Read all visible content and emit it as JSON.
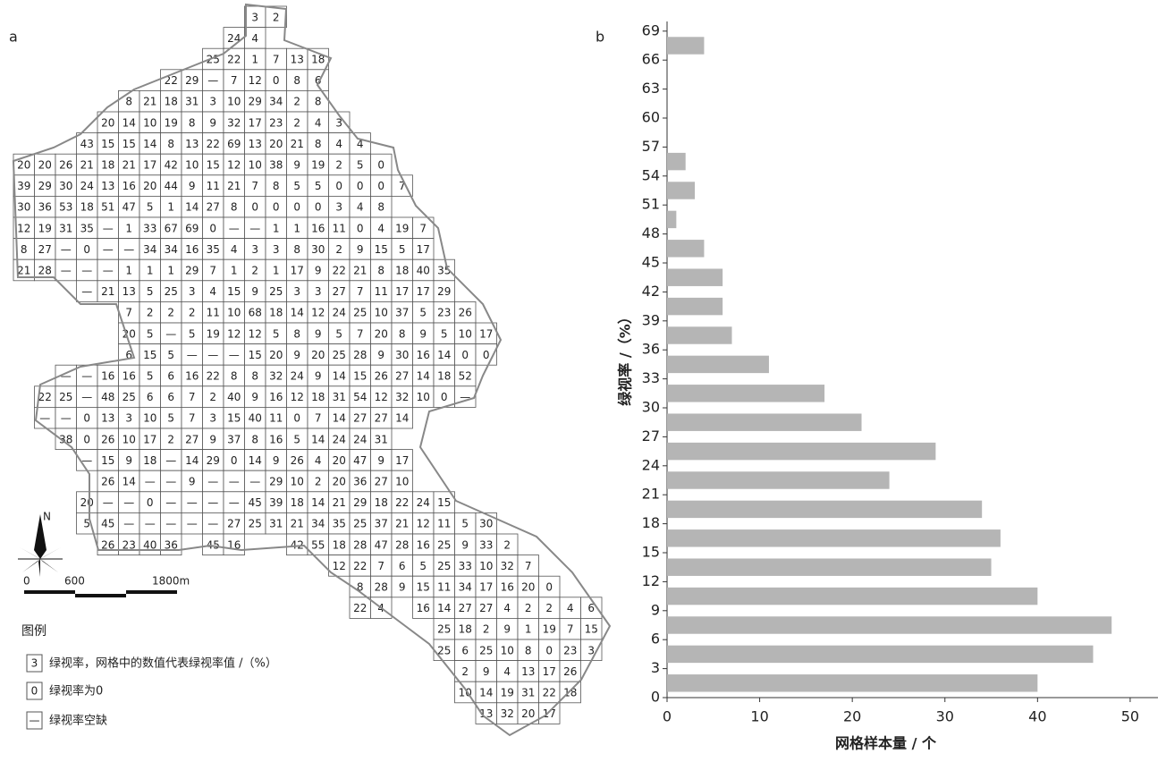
{
  "panel_a": {
    "label": "a",
    "grid": {
      "rows": [
        [
          null,
          null,
          null,
          null,
          null,
          null,
          null,
          null,
          null,
          null,
          null,
          3,
          2
        ],
        [
          null,
          null,
          null,
          null,
          null,
          null,
          null,
          null,
          null,
          null,
          24,
          4
        ],
        [
          null,
          null,
          null,
          null,
          null,
          null,
          null,
          null,
          null,
          25,
          22,
          1,
          7,
          13,
          18
        ],
        [
          null,
          null,
          null,
          null,
          null,
          null,
          null,
          22,
          29,
          "—",
          7,
          12,
          0,
          8,
          6
        ],
        [
          null,
          null,
          null,
          null,
          null,
          8,
          21,
          18,
          31,
          3,
          10,
          29,
          34,
          2,
          8
        ],
        [
          null,
          null,
          null,
          null,
          20,
          14,
          10,
          19,
          8,
          9,
          32,
          17,
          23,
          2,
          4,
          3
        ],
        [
          null,
          null,
          null,
          43,
          15,
          15,
          14,
          8,
          13,
          22,
          69,
          13,
          20,
          21,
          8,
          4,
          4
        ],
        [
          20,
          20,
          26,
          21,
          18,
          21,
          17,
          42,
          10,
          15,
          12,
          10,
          38,
          9,
          19,
          2,
          5,
          0
        ],
        [
          39,
          29,
          30,
          24,
          13,
          16,
          20,
          44,
          9,
          11,
          21,
          7,
          8,
          5,
          5,
          0,
          0,
          0,
          7
        ],
        [
          30,
          36,
          53,
          18,
          51,
          47,
          5,
          1,
          14,
          27,
          8,
          0,
          0,
          0,
          0,
          3,
          4,
          8
        ],
        [
          12,
          19,
          31,
          35,
          "—",
          1,
          33,
          67,
          69,
          0,
          "—",
          "—",
          1,
          1,
          16,
          11,
          0,
          4,
          19,
          7
        ],
        [
          8,
          27,
          "—",
          0,
          "—",
          "—",
          34,
          34,
          16,
          35,
          4,
          3,
          3,
          8,
          30,
          2,
          9,
          15,
          5,
          17
        ],
        [
          21,
          28,
          "—",
          "—",
          "—",
          1,
          1,
          1,
          29,
          7,
          1,
          2,
          1,
          17,
          9,
          22,
          21,
          8,
          18,
          40,
          35
        ],
        [
          null,
          null,
          null,
          "—",
          21,
          13,
          5,
          25,
          3,
          4,
          15,
          9,
          25,
          3,
          3,
          27,
          7,
          11,
          17,
          17,
          29
        ],
        [
          null,
          null,
          null,
          null,
          null,
          7,
          2,
          2,
          2,
          11,
          10,
          68,
          18,
          14,
          12,
          24,
          25,
          10,
          37,
          5,
          23,
          26
        ],
        [
          null,
          null,
          null,
          null,
          null,
          20,
          5,
          "—",
          5,
          19,
          12,
          12,
          5,
          8,
          9,
          5,
          7,
          20,
          8,
          9,
          5,
          10,
          17
        ],
        [
          null,
          null,
          null,
          null,
          null,
          6,
          15,
          5,
          "—",
          "—",
          "—",
          15,
          20,
          9,
          20,
          25,
          28,
          9,
          30,
          16,
          14,
          0,
          0
        ],
        [
          null,
          null,
          "—",
          "—",
          16,
          16,
          5,
          6,
          16,
          22,
          8,
          8,
          32,
          24,
          9,
          14,
          15,
          26,
          27,
          14,
          18,
          52
        ],
        [
          null,
          22,
          25,
          "—",
          48,
          25,
          6,
          6,
          7,
          2,
          40,
          9,
          16,
          12,
          18,
          31,
          54,
          12,
          32,
          10,
          0,
          "—"
        ],
        [
          null,
          "—",
          "—",
          0,
          13,
          3,
          10,
          5,
          7,
          3,
          15,
          40,
          11,
          0,
          7,
          14,
          27,
          27,
          14
        ],
        [
          null,
          null,
          38,
          0,
          26,
          10,
          17,
          2,
          27,
          9,
          37,
          8,
          16,
          5,
          14,
          24,
          24,
          31
        ],
        [
          null,
          null,
          null,
          "—",
          15,
          9,
          18,
          "—",
          14,
          29,
          0,
          14,
          9,
          26,
          4,
          20,
          47,
          9,
          17
        ],
        [
          null,
          null,
          null,
          null,
          26,
          14,
          "—",
          "—",
          9,
          "—",
          "—",
          "—",
          29,
          10,
          2,
          20,
          36,
          27,
          10
        ],
        [
          null,
          null,
          null,
          20,
          "—",
          "—",
          0,
          "—",
          "—",
          "—",
          "—",
          45,
          39,
          18,
          14,
          21,
          29,
          18,
          22,
          24,
          15
        ],
        [
          null,
          null,
          null,
          5,
          45,
          "—",
          "—",
          "—",
          "—",
          "—",
          27,
          25,
          31,
          21,
          34,
          35,
          25,
          37,
          21,
          12,
          11,
          5,
          30
        ],
        [
          null,
          null,
          null,
          null,
          26,
          23,
          40,
          36,
          null,
          45,
          16,
          null,
          null,
          42,
          55,
          18,
          28,
          47,
          28,
          16,
          25,
          9,
          33,
          2
        ],
        [
          null,
          null,
          null,
          null,
          null,
          null,
          null,
          null,
          null,
          null,
          null,
          null,
          null,
          null,
          null,
          12,
          22,
          7,
          6,
          5,
          25,
          33,
          10,
          32,
          7
        ],
        [
          null,
          null,
          null,
          null,
          null,
          null,
          null,
          null,
          null,
          null,
          null,
          null,
          null,
          null,
          null,
          null,
          8,
          28,
          9,
          15,
          11,
          34,
          17,
          16,
          20,
          0
        ],
        [
          null,
          null,
          null,
          null,
          null,
          null,
          null,
          null,
          null,
          null,
          null,
          null,
          null,
          null,
          null,
          null,
          22,
          4,
          null,
          16,
          14,
          27,
          27,
          4,
          2,
          2,
          4,
          6
        ],
        [
          null,
          null,
          null,
          null,
          null,
          null,
          null,
          null,
          null,
          null,
          null,
          null,
          null,
          null,
          null,
          null,
          null,
          null,
          null,
          null,
          25,
          18,
          2,
          9,
          1,
          19,
          7,
          15
        ],
        [
          null,
          null,
          null,
          null,
          null,
          null,
          null,
          null,
          null,
          null,
          null,
          null,
          null,
          null,
          null,
          null,
          null,
          null,
          null,
          null,
          25,
          6,
          25,
          10,
          8,
          0,
          23,
          3
        ],
        [
          null,
          null,
          null,
          null,
          null,
          null,
          null,
          null,
          null,
          null,
          null,
          null,
          null,
          null,
          null,
          null,
          null,
          null,
          null,
          null,
          null,
          2,
          9,
          4,
          13,
          17,
          26
        ],
        [
          null,
          null,
          null,
          null,
          null,
          null,
          null,
          null,
          null,
          null,
          null,
          null,
          null,
          null,
          null,
          null,
          null,
          null,
          null,
          null,
          null,
          10,
          14,
          19,
          31,
          22,
          18
        ],
        [
          null,
          null,
          null,
          null,
          null,
          null,
          null,
          null,
          null,
          null,
          null,
          null,
          null,
          null,
          null,
          null,
          null,
          null,
          null,
          null,
          null,
          null,
          13,
          32,
          20,
          17
        ]
      ]
    },
    "north": "N",
    "scale": [
      "0",
      "600",
      "1800m"
    ],
    "legend": {
      "title": "图例",
      "items": [
        {
          "symbol": "3",
          "text": "绿视率，网格中的数值代表绿视率值 /（%）"
        },
        {
          "symbol": "0",
          "text": "绿视率为0"
        },
        {
          "symbol": "—",
          "text": "绿视率空缺"
        }
      ]
    }
  },
  "chart_data": {
    "type": "histogram",
    "orientation": "horizontal",
    "panel_label": "b",
    "bins": [
      0,
      3,
      6,
      9,
      12,
      15,
      18,
      21,
      24,
      27,
      30,
      33,
      36,
      39,
      42,
      45,
      48,
      51,
      54,
      57,
      60,
      63,
      66,
      69
    ],
    "counts": [
      40,
      46,
      48,
      40,
      35,
      36,
      34,
      24,
      29,
      21,
      17,
      11,
      7,
      6,
      6,
      4,
      1,
      3,
      2,
      0,
      0,
      0,
      4
    ],
    "color": "#b5b5b5",
    "ylabel": "绿视率 /（%）",
    "xlabel": "网格样本量 / 个",
    "ylim": [
      0,
      70
    ],
    "yticks": [
      0,
      3,
      6,
      9,
      12,
      15,
      18,
      21,
      24,
      27,
      30,
      33,
      36,
      39,
      42,
      45,
      48,
      51,
      54,
      57,
      60,
      63,
      66,
      69
    ],
    "xlim": [
      0,
      53
    ],
    "xticks": [
      0,
      10,
      20,
      30,
      40,
      50
    ]
  }
}
